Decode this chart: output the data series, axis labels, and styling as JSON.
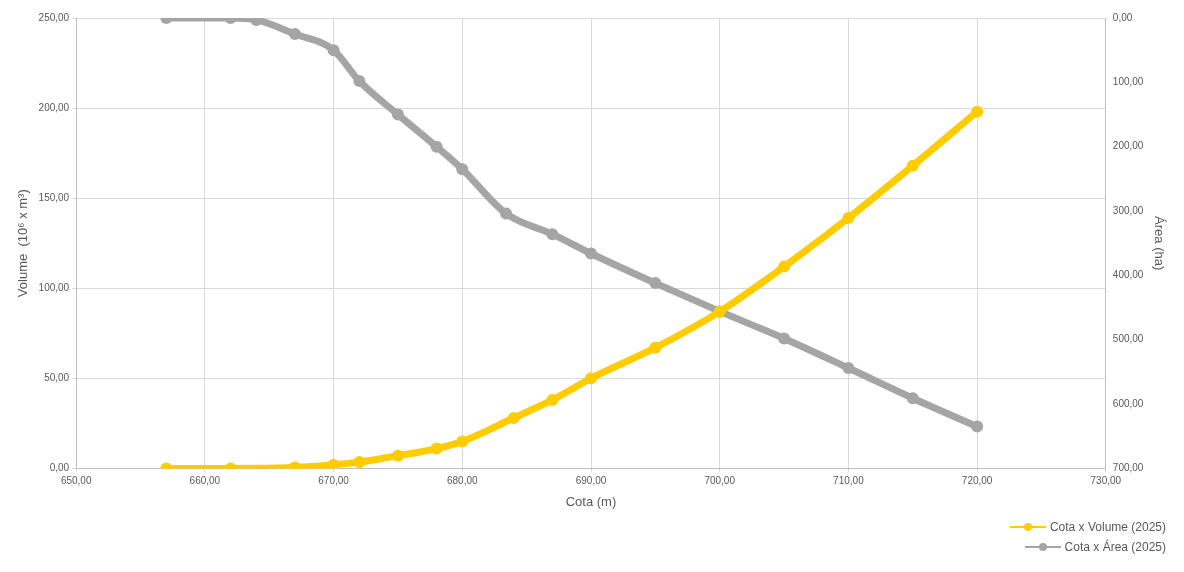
{
  "chart_data": {
    "type": "line",
    "xlabel": "Cota (m)",
    "ylabel": "Volume  (10⁶ x m³)",
    "y2label": "Área (ha)",
    "xlim": [
      650,
      730
    ],
    "xticks": [
      {
        "value": 650,
        "label": "650,00"
      },
      {
        "value": 660,
        "label": "660,00"
      },
      {
        "value": 670,
        "label": "670,00"
      },
      {
        "value": 680,
        "label": "680,00"
      },
      {
        "value": 690,
        "label": "690,00"
      },
      {
        "value": 700,
        "label": "700,00"
      },
      {
        "value": 710,
        "label": "710,00"
      },
      {
        "value": 720,
        "label": "720,00"
      },
      {
        "value": 730,
        "label": "730,00"
      }
    ],
    "ylim": [
      0,
      250
    ],
    "yticks": [
      {
        "value": 0,
        "label": "0,00"
      },
      {
        "value": 50,
        "label": "50,00"
      },
      {
        "value": 100,
        "label": "100,00"
      },
      {
        "value": 150,
        "label": "150,00"
      },
      {
        "value": 200,
        "label": "200,00"
      },
      {
        "value": 250,
        "label": "250,00"
      }
    ],
    "y2lim": [
      700,
      0
    ],
    "y2ticks": [
      {
        "value": 0,
        "label": "0,00"
      },
      {
        "value": 100,
        "label": "100,00"
      },
      {
        "value": 200,
        "label": "200,00"
      },
      {
        "value": 300,
        "label": "300,00"
      },
      {
        "value": 400,
        "label": "400,00"
      },
      {
        "value": 500,
        "label": "500,00"
      },
      {
        "value": 600,
        "label": "600,00"
      },
      {
        "value": 700,
        "label": "700,00"
      }
    ],
    "grid": true,
    "legend": "bottom right",
    "marker": "circle",
    "line_style": "solid",
    "series": [
      {
        "name": "Cota x Volume (2025)",
        "color": "#ffcc00",
        "x": [
          657,
          662,
          667,
          670,
          672,
          675,
          678,
          680,
          684,
          687,
          690,
          695,
          700,
          705,
          710,
          715,
          720
        ],
        "values": [
          0,
          0,
          0.5,
          2,
          3.5,
          7,
          11,
          15,
          28,
          38,
          50,
          67,
          87,
          112,
          139,
          168,
          198
        ]
      },
      {
        "name": "Cota x Área (2025)",
        "color": "#a5a5a5",
        "axis": "y2",
        "x": [
          657,
          662,
          664,
          667,
          670,
          672,
          675,
          678,
          680,
          683.4,
          687,
          690,
          695,
          700,
          705,
          710,
          715,
          720
        ],
        "values": [
          0,
          0,
          3,
          25,
          50,
          98,
          150,
          200,
          235,
          304,
          336,
          366,
          412,
          456,
          498,
          544,
          591,
          635
        ]
      }
    ]
  }
}
